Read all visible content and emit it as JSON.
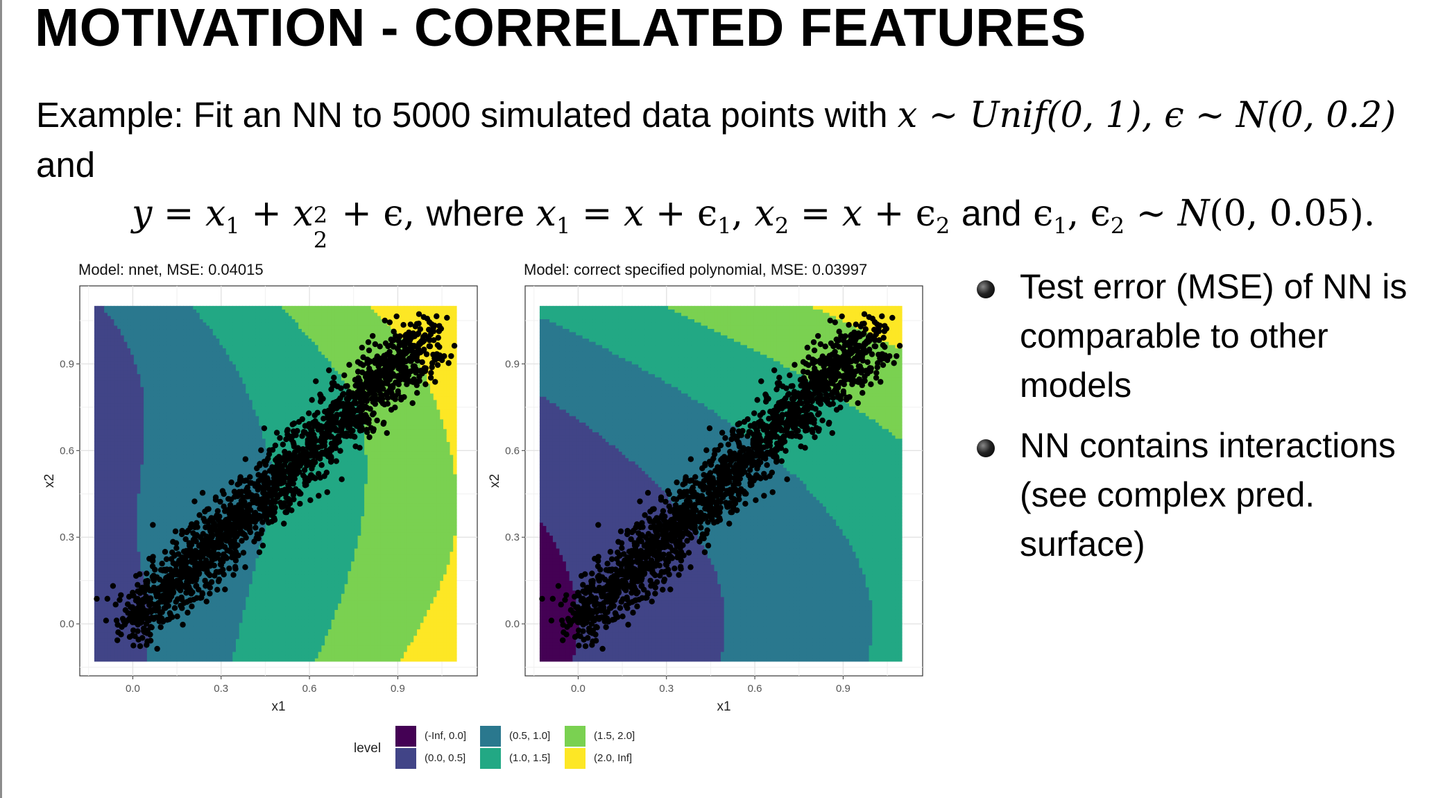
{
  "slide": {
    "title": "MOTIVATION - CORRELATED FEATURES",
    "intro_prefix": "Example: Fit an NN to 5000 simulated data points with ",
    "intro_and": "and"
  },
  "equation": {
    "x_dist": "x ∼ Unif(0, 1), ϵ ∼ N(0, 0.2)",
    "where_word": "where",
    "and_word": "and"
  },
  "bullets": [
    "Test error (MSE) of NN is comparable to other models",
    "NN contains interactions (see complex pred. surface)"
  ],
  "legend": {
    "title": "level",
    "items": [
      {
        "label": "(-Inf, 0.0]",
        "color": "#440154"
      },
      {
        "label": "(0.0, 0.5]",
        "color": "#414487"
      },
      {
        "label": "(0.5, 1.0]",
        "color": "#2a788e"
      },
      {
        "label": "(1.0, 1.5]",
        "color": "#22a884"
      },
      {
        "label": "(1.5, 2.0]",
        "color": "#7ad151"
      },
      {
        "label": "(2.0, Inf]",
        "color": "#fde725"
      }
    ]
  },
  "chart_data": [
    {
      "type": "heatmap",
      "title": "Model: nnet, MSE: 0.04015",
      "xlabel": "x1",
      "ylabel": "x2",
      "x_ticks": [
        "0.0",
        "0.3",
        "0.6",
        "0.9"
      ],
      "y_ticks": [
        "0.0",
        "0.3",
        "0.6",
        "0.9"
      ],
      "xlim": [
        -0.18,
        1.17
      ],
      "ylim": [
        -0.18,
        1.17
      ],
      "grid": true,
      "n_points": 5000,
      "point_color": "#000000"
    },
    {
      "type": "heatmap",
      "title": "Model: correct specified polynomial, MSE: 0.03997",
      "xlabel": "x1",
      "ylabel": "x2",
      "x_ticks": [
        "0.0",
        "0.3",
        "0.6",
        "0.9"
      ],
      "y_ticks": [
        "0.0",
        "0.3",
        "0.6",
        "0.9"
      ],
      "xlim": [
        -0.18,
        1.17
      ],
      "ylim": [
        -0.18,
        1.17
      ],
      "grid": true,
      "n_points": 5000,
      "point_color": "#000000"
    }
  ]
}
